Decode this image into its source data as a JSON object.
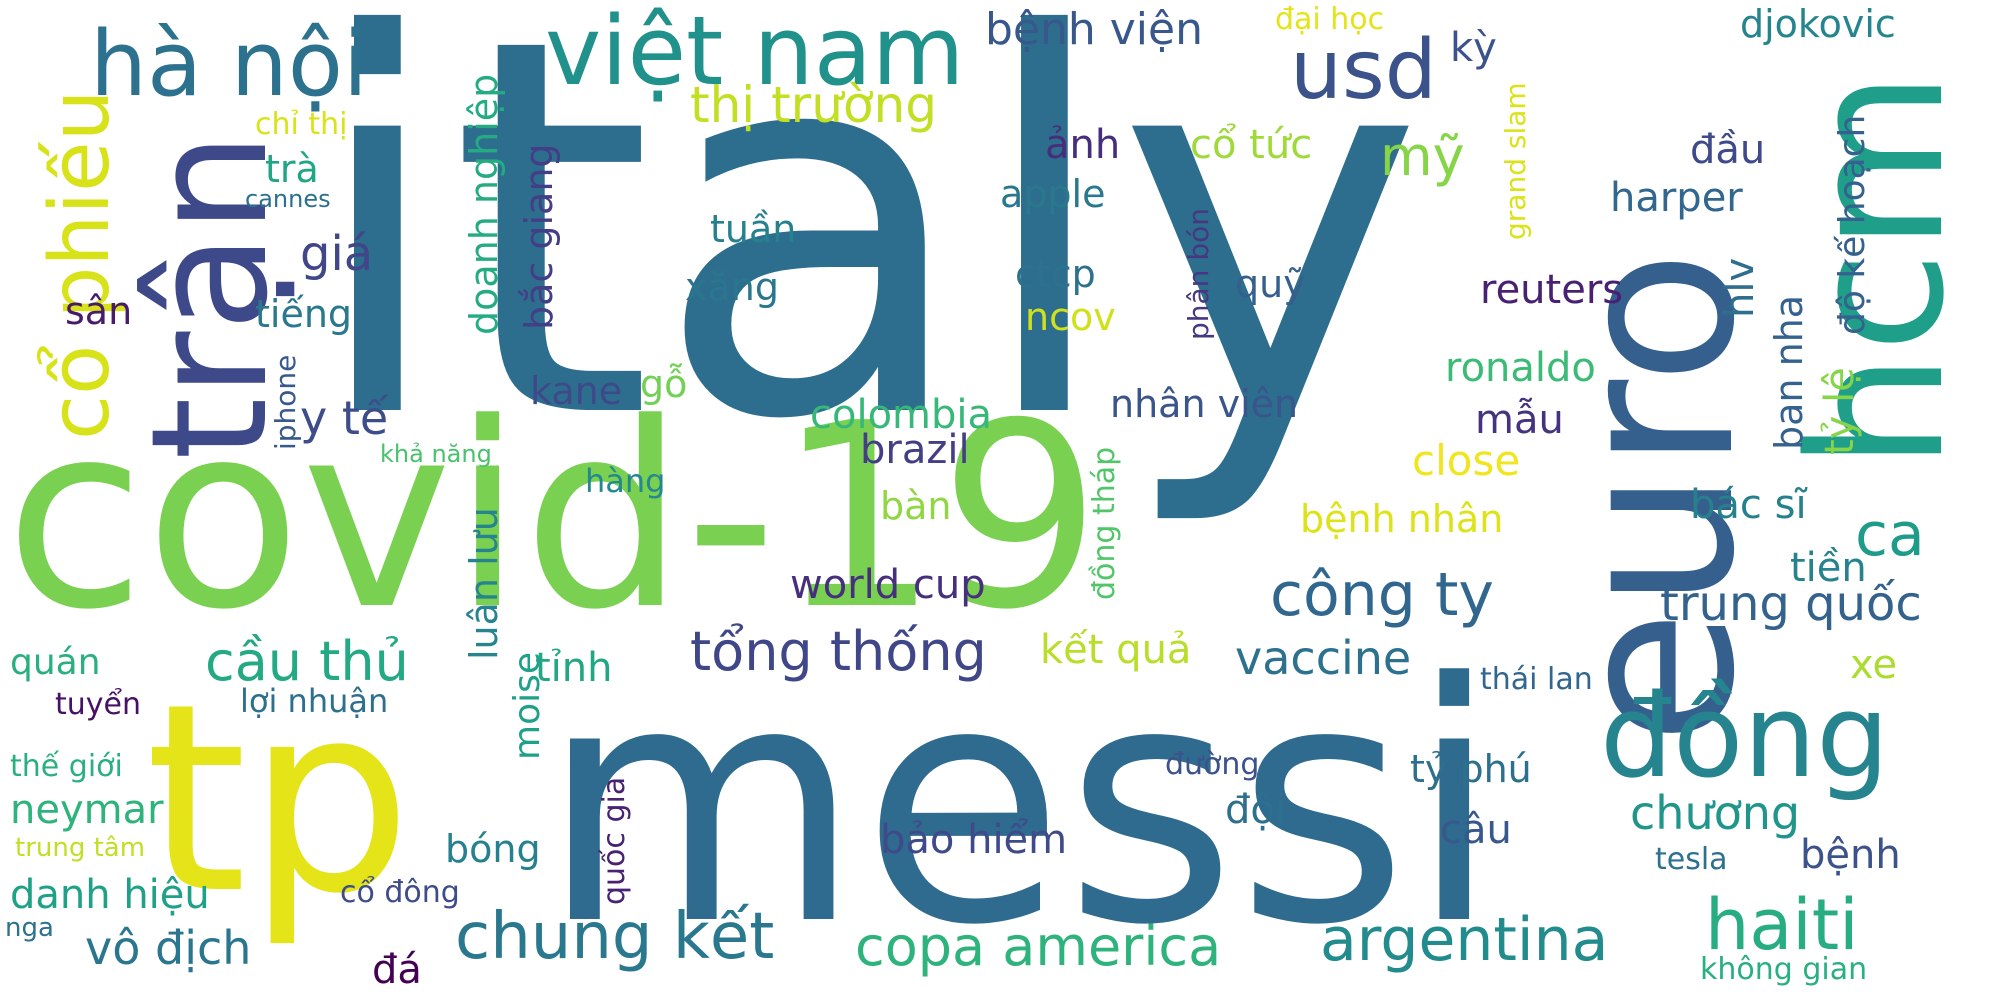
{
  "words": {
    "italy": "italy",
    "covid": "covid-19",
    "messi": "messi",
    "tp": "tp",
    "euro": "euro",
    "hcm": "hcm",
    "tran": "trận",
    "dong": "đồng",
    "vietnam": "việt nam",
    "hanoi": "hà nội",
    "cophieu": "cổ phiếu",
    "usd": "usd",
    "haiti": "haiti",
    "chungket": "chung kết",
    "congty": "công ty",
    "argentina": "argentina",
    "copa": "copa america",
    "tongthong": "tổng thống",
    "cauthu": "cầu thủ",
    "thitruong": "thị trường",
    "ca": "ca",
    "vodich": "vô địch",
    "trungquoc": "trung quốc",
    "vaccine": "vaccine",
    "mi": "mỹ",
    "chuong": "chương",
    "benhvien": "bệnh viện",
    "worldcup": "world cup",
    "gia": "giá",
    "yte": "y tế",
    "baohiem": "bảo hiểm",
    "brazil": "brazil",
    "colombia": "colombia",
    "ketqua": "kết quả",
    "benhnhan": "bệnh nhân",
    "close": "close",
    "bacsi": "bác sĩ",
    "danhhieu": "danh hiệu",
    "neymar": "neymar",
    "typhu": "tỷ phú",
    "ronaldo": "ronaldo",
    "reuters": "reuters",
    "harper": "harper",
    "djokovic": "djokovic",
    "apple": "apple",
    "ctcp": "ctcp",
    "ncov": "ncov",
    "nhanvien": "nhân viên",
    "anh": "ảnh",
    "cotuc": "cổ tức",
    "quy": "quỹ",
    "tuan": "tuần",
    "xang": "xăng",
    "tra": "trà",
    "tieng": "tiếng",
    "san": "sân",
    "kane": "kane",
    "go": "gỗ",
    "ban": "bàn",
    "doi": "đội",
    "cau": "câu",
    "benh": "bệnh",
    "xe": "xe",
    "tien": "tiền",
    "dau": "đầu",
    "mau": "mẫu",
    "tinh": "tỉnh",
    "bong": "bóng",
    "quan": "quán",
    "tuyen": "tuyển",
    "thegioi": "thế giới",
    "loinhuan": "lợi nhuận",
    "codong": "cổ đông",
    "da": "đá",
    "nga": "nga",
    "trungtam": "trung tâm",
    "khanang": "khả năng",
    "hang": "hàng",
    "duong": "đường",
    "thailan": "thái lan",
    "tesla": "tesla",
    "khonggian": "không gian",
    "chithi": "chỉ thị",
    "cannes": "cannes",
    "daihoc": "đại học",
    "ky": "kỳ",
    "doanhnghiep": "doanh nghiệp",
    "bacgiang": "bắc giang",
    "luanluu": "luân lưu",
    "moise": "moise",
    "quocgia": "quốc gia",
    "dongthap": "đồng tháp",
    "iphone": "iphone",
    "phanbon": "phân bón",
    "grandslam": "grand slam",
    "hlv": "hlv",
    "bannha": "ban nha",
    "dokehoach": "độ kế hoạch",
    "tyle": "tỷ lệ"
  }
}
